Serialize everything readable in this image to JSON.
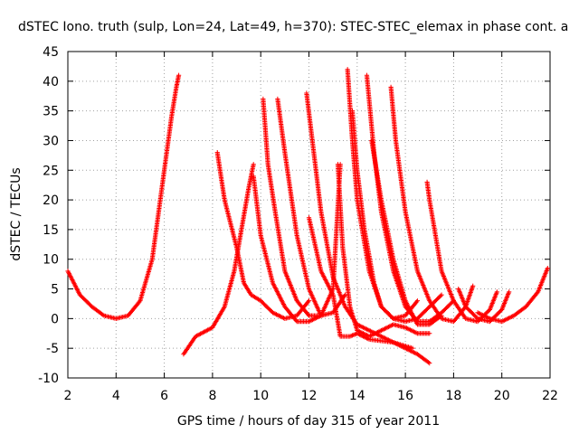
{
  "chart_data": {
    "type": "scatter",
    "title": "dSTEC Iono. truth (sulp, Lon=24, Lat=49, h=370): STEC-STEC_elemax in phase cont. a",
    "xlabel": "GPS time / hours of day 315 of year 2011",
    "ylabel": "dSTEC  / TECUs",
    "xlim": [
      2,
      22
    ],
    "ylim": [
      -10,
      45
    ],
    "xticks": [
      2,
      4,
      6,
      8,
      10,
      12,
      14,
      16,
      18,
      20,
      22
    ],
    "yticks": [
      -10,
      -5,
      0,
      5,
      10,
      15,
      20,
      25,
      30,
      35,
      40,
      45
    ],
    "grid": true,
    "marker": "+",
    "colors": {
      "series": "#ff0000",
      "grid": "#a0a0a0",
      "axis": "#000000"
    },
    "series": [
      {
        "x": [
          2.0,
          2.5,
          3.0,
          3.5,
          4.0,
          4.5,
          5.0,
          5.5,
          6.0,
          6.3,
          6.5,
          6.6
        ],
        "y": [
          8,
          4,
          2,
          0.5,
          0,
          0.5,
          3,
          10,
          25,
          34,
          39,
          41
        ]
      },
      {
        "x": [
          6.8,
          7.3,
          8.0,
          8.5,
          8.9,
          9.2,
          9.5,
          9.7
        ],
        "y": [
          -6,
          -3,
          -1.5,
          2,
          8,
          15,
          22,
          26
        ]
      },
      {
        "x": [
          8.2,
          8.5,
          9.0,
          9.3,
          9.6,
          10.0,
          10.5,
          11.0,
          11.5,
          12.0
        ],
        "y": [
          28,
          20,
          12,
          6,
          4,
          3,
          1,
          0,
          0.5,
          3
        ]
      },
      {
        "x": [
          9.7,
          10.0,
          10.5,
          11.0,
          11.5,
          12.0,
          12.5
        ],
        "y": [
          24,
          14,
          6,
          2,
          -0.5,
          -0.5,
          0.5
        ]
      },
      {
        "x": [
          10.1,
          10.3,
          10.6,
          11.0,
          11.5,
          12.0,
          12.5,
          13.0,
          13.3
        ],
        "y": [
          37,
          26,
          18,
          8,
          3,
          0.5,
          0.5,
          5,
          26
        ]
      },
      {
        "x": [
          10.7,
          11.0,
          11.5,
          12.0,
          12.5,
          13.0,
          13.5
        ],
        "y": [
          37,
          28,
          14,
          5,
          0.5,
          1,
          4
        ]
      },
      {
        "x": [
          11.9,
          12.2,
          12.5,
          13.0,
          13.5,
          14.0,
          14.5,
          15.0,
          15.5,
          16.0,
          16.5,
          17.0
        ],
        "y": [
          38,
          28,
          18,
          7,
          2,
          -1,
          -2,
          -3,
          -4,
          -5,
          -6,
          -7.5
        ]
      },
      {
        "x": [
          12.0,
          12.5,
          13.0,
          13.3,
          13.7,
          14.0,
          14.5,
          15.5,
          16.3
        ],
        "y": [
          17,
          8,
          4,
          -3,
          -3,
          -2.5,
          -3.5,
          -4,
          -5
        ]
      },
      {
        "x": [
          13.2,
          13.4,
          13.7,
          14.0,
          14.5,
          15.0,
          15.5,
          16.0,
          16.5,
          17.0
        ],
        "y": [
          26,
          12,
          2,
          -2,
          -3,
          -2,
          -1,
          -1.5,
          -2.5,
          -2.5
        ]
      },
      {
        "x": [
          13.6,
          13.8,
          14.0,
          14.5,
          15.0,
          15.5,
          16.0,
          16.5
        ],
        "y": [
          42,
          30,
          20,
          8,
          2,
          0,
          0.5,
          3
        ]
      },
      {
        "x": [
          13.8,
          14.0,
          14.3,
          14.7,
          15.0,
          15.5,
          16.0,
          16.5,
          17.0,
          17.5
        ],
        "y": [
          35,
          25,
          15,
          6,
          2,
          0,
          -0.5,
          0,
          2,
          4
        ]
      },
      {
        "x": [
          14.4,
          14.7,
          15.0,
          15.5,
          16.0,
          16.5,
          17.0,
          17.5,
          18.0
        ],
        "y": [
          41,
          28,
          18,
          8,
          2,
          -0.5,
          -0.5,
          1,
          3
        ]
      },
      {
        "x": [
          14.6,
          15.0,
          15.5,
          16.0,
          16.5,
          17.0,
          17.5
        ],
        "y": [
          30,
          20,
          10,
          3,
          -1,
          -1,
          0.5
        ]
      },
      {
        "x": [
          15.4,
          15.6,
          16.0,
          16.5,
          17.0,
          17.5,
          18.0,
          18.5,
          18.8
        ],
        "y": [
          39,
          30,
          18,
          8,
          3,
          0,
          -0.5,
          2,
          5.5
        ]
      },
      {
        "x": [
          16.9,
          17.0,
          17.5,
          18.0,
          18.5,
          19.0,
          19.5,
          19.8
        ],
        "y": [
          23,
          20,
          8,
          3,
          0,
          -0.5,
          1.5,
          4.5
        ]
      },
      {
        "x": [
          18.2,
          18.5,
          19.0,
          19.5,
          20.0,
          20.3
        ],
        "y": [
          5,
          2,
          0,
          -0.5,
          1.5,
          4.5
        ]
      },
      {
        "x": [
          19.0,
          19.5,
          20.0,
          20.5,
          21.0,
          21.5,
          21.9
        ],
        "y": [
          1,
          0,
          -0.5,
          0.5,
          2,
          4.5,
          8.5
        ]
      }
    ]
  }
}
